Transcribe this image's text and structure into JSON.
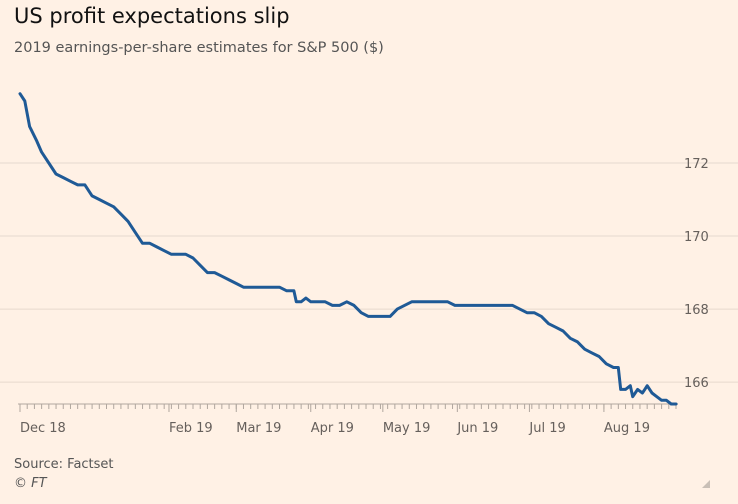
{
  "header": {
    "title": "US profit expectations slip",
    "subtitle": "2019 earnings-per-share estimates for S&P 500 ($)"
  },
  "footer": {
    "source": "Source: Factset",
    "credit": "© FT"
  },
  "colors": {
    "background": "#FFF1E5",
    "line": "#1F5A96",
    "grid": "#E6D9CE",
    "axis": "#B0A69E"
  },
  "chart_data": {
    "type": "line",
    "title": "US profit expectations slip",
    "subtitle": "2019 earnings-per-share estimates for S&P 500 ($)",
    "xlabel": "",
    "ylabel": "",
    "y_axis_position": "right",
    "ylim": [
      165.4,
      174
    ],
    "yticks": [
      166,
      168,
      170,
      172
    ],
    "grid": true,
    "x_ticks": [
      {
        "label": "Dec 18",
        "date": "2018-12-01"
      },
      {
        "label": "Feb 19",
        "date": "2019-02-01"
      },
      {
        "label": "Mar 19",
        "date": "2019-03-01"
      },
      {
        "label": "Apr 19",
        "date": "2019-04-01"
      },
      {
        "label": "May 19",
        "date": "2019-05-01"
      },
      {
        "label": "Jun 19",
        "date": "2019-06-01"
      },
      {
        "label": "Jul 19",
        "date": "2019-07-01"
      },
      {
        "label": "Aug 19",
        "date": "2019-08-01"
      }
    ],
    "xlim": [
      "2018-12-01",
      "2019-08-31"
    ],
    "series": [
      {
        "points": [
          [
            "2018-12-01",
            173.9
          ],
          [
            "2018-12-03",
            173.7
          ],
          [
            "2018-12-05",
            173.0
          ],
          [
            "2018-12-08",
            172.6
          ],
          [
            "2018-12-10",
            172.3
          ],
          [
            "2018-12-13",
            172.0
          ],
          [
            "2018-12-16",
            171.7
          ],
          [
            "2018-12-19",
            171.6
          ],
          [
            "2018-12-22",
            171.5
          ],
          [
            "2018-12-25",
            171.4
          ],
          [
            "2018-12-28",
            171.4
          ],
          [
            "2018-12-31",
            171.1
          ],
          [
            "2019-01-03",
            171.0
          ],
          [
            "2019-01-06",
            170.9
          ],
          [
            "2019-01-09",
            170.8
          ],
          [
            "2019-01-12",
            170.6
          ],
          [
            "2019-01-15",
            170.4
          ],
          [
            "2019-01-18",
            170.1
          ],
          [
            "2019-01-21",
            169.8
          ],
          [
            "2019-01-24",
            169.8
          ],
          [
            "2019-01-27",
            169.7
          ],
          [
            "2019-01-30",
            169.6
          ],
          [
            "2019-02-02",
            169.5
          ],
          [
            "2019-02-05",
            169.5
          ],
          [
            "2019-02-08",
            169.5
          ],
          [
            "2019-02-11",
            169.4
          ],
          [
            "2019-02-14",
            169.2
          ],
          [
            "2019-02-17",
            169.0
          ],
          [
            "2019-02-20",
            169.0
          ],
          [
            "2019-02-23",
            168.9
          ],
          [
            "2019-02-26",
            168.8
          ],
          [
            "2019-03-01",
            168.7
          ],
          [
            "2019-03-04",
            168.6
          ],
          [
            "2019-03-07",
            168.6
          ],
          [
            "2019-03-10",
            168.6
          ],
          [
            "2019-03-13",
            168.6
          ],
          [
            "2019-03-16",
            168.6
          ],
          [
            "2019-03-19",
            168.6
          ],
          [
            "2019-03-22",
            168.5
          ],
          [
            "2019-03-25",
            168.5
          ],
          [
            "2019-03-26",
            168.2
          ],
          [
            "2019-03-28",
            168.2
          ],
          [
            "2019-03-30",
            168.3
          ],
          [
            "2019-04-01",
            168.2
          ],
          [
            "2019-04-04",
            168.2
          ],
          [
            "2019-04-07",
            168.2
          ],
          [
            "2019-04-10",
            168.1
          ],
          [
            "2019-04-13",
            168.1
          ],
          [
            "2019-04-16",
            168.2
          ],
          [
            "2019-04-19",
            168.1
          ],
          [
            "2019-04-22",
            167.9
          ],
          [
            "2019-04-25",
            167.8
          ],
          [
            "2019-04-28",
            167.8
          ],
          [
            "2019-05-01",
            167.8
          ],
          [
            "2019-05-04",
            167.8
          ],
          [
            "2019-05-07",
            168.0
          ],
          [
            "2019-05-10",
            168.1
          ],
          [
            "2019-05-13",
            168.2
          ],
          [
            "2019-05-16",
            168.2
          ],
          [
            "2019-05-19",
            168.2
          ],
          [
            "2019-05-22",
            168.2
          ],
          [
            "2019-05-25",
            168.2
          ],
          [
            "2019-05-28",
            168.2
          ],
          [
            "2019-05-31",
            168.1
          ],
          [
            "2019-06-03",
            168.1
          ],
          [
            "2019-06-06",
            168.1
          ],
          [
            "2019-06-09",
            168.1
          ],
          [
            "2019-06-12",
            168.1
          ],
          [
            "2019-06-15",
            168.1
          ],
          [
            "2019-06-18",
            168.1
          ],
          [
            "2019-06-21",
            168.1
          ],
          [
            "2019-06-24",
            168.1
          ],
          [
            "2019-06-27",
            168.0
          ],
          [
            "2019-06-30",
            167.9
          ],
          [
            "2019-07-03",
            167.9
          ],
          [
            "2019-07-06",
            167.8
          ],
          [
            "2019-07-09",
            167.6
          ],
          [
            "2019-07-12",
            167.5
          ],
          [
            "2019-07-15",
            167.4
          ],
          [
            "2019-07-18",
            167.2
          ],
          [
            "2019-07-21",
            167.1
          ],
          [
            "2019-07-24",
            166.9
          ],
          [
            "2019-07-27",
            166.8
          ],
          [
            "2019-07-30",
            166.7
          ],
          [
            "2019-08-02",
            166.5
          ],
          [
            "2019-08-05",
            166.4
          ],
          [
            "2019-08-07",
            166.4
          ],
          [
            "2019-08-08",
            165.8
          ],
          [
            "2019-08-10",
            165.8
          ],
          [
            "2019-08-12",
            165.9
          ],
          [
            "2019-08-13",
            165.6
          ],
          [
            "2019-08-15",
            165.8
          ],
          [
            "2019-08-17",
            165.7
          ],
          [
            "2019-08-18",
            165.8
          ],
          [
            "2019-08-19",
            165.9
          ],
          [
            "2019-08-21",
            165.7
          ],
          [
            "2019-08-23",
            165.6
          ],
          [
            "2019-08-25",
            165.5
          ],
          [
            "2019-08-27",
            165.5
          ],
          [
            "2019-08-29",
            165.4
          ],
          [
            "2019-08-31",
            165.4
          ]
        ]
      }
    ]
  }
}
